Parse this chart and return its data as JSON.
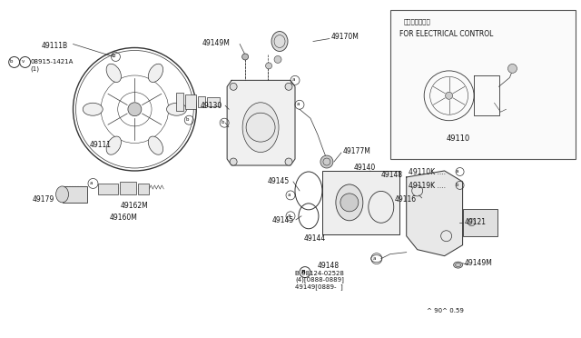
{
  "bg_color": "#ffffff",
  "line_color": "#333333",
  "text_color": "#111111",
  "parts": {
    "49111B": "49111B",
    "08915_1421A": "08915-1421A\n(1)",
    "49111": "49111",
    "49149M_top": "49149M",
    "49130": "49130",
    "49170M": "49170M",
    "49177M": "49177M",
    "49179": "49179",
    "49162M": "49162M",
    "49160M": "49160M",
    "49145_top": "49145",
    "49145_bot": "49145",
    "49144": "49144",
    "49140": "49140",
    "49148_top": "49148",
    "49148_bot": "49148",
    "49116": "49116",
    "49121": "49121",
    "49149M_bot": "49149M",
    "08124_02528": "B 08124-02528\n(4)[0888-0889]\n49149[0889-  ]",
    "note": "^ 90^ 0.59",
    "49110K": "49110K ....",
    "49119K": "49119K ....",
    "49110": "49110"
  },
  "inset_japanese": "電子制御タイプ",
  "inset_english": "FOR ELECTRICAL CONTROL"
}
